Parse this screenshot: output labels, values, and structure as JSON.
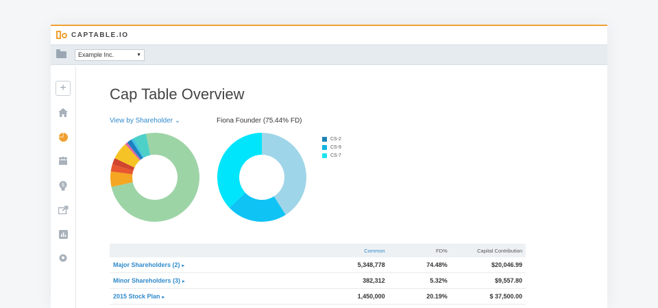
{
  "brand": {
    "name": "CAPTABLE.IO"
  },
  "toolbar": {
    "company": "Example Inc.",
    "caret": "▼"
  },
  "sidebar": {
    "items": [
      {
        "icon": "plus-icon",
        "glyph": "+"
      },
      {
        "icon": "home-icon"
      },
      {
        "icon": "pie-chart-icon"
      },
      {
        "icon": "people-icon"
      },
      {
        "icon": "lightbulb-icon"
      },
      {
        "icon": "share-icon"
      },
      {
        "icon": "bar-chart-icon"
      },
      {
        "icon": "location-icon"
      }
    ]
  },
  "main": {
    "title": "Cap Table Overview",
    "view_by": "View by Shareholder",
    "view_by_chevron": "⌄",
    "detail_title": "Fiona Founder (75.44% FD)"
  },
  "chart_data": [
    {
      "type": "pie",
      "slices": [
        {
          "value": 71.5,
          "color": "#9dd4a6"
        },
        {
          "value": 5.6,
          "color": "#f5a623"
        },
        {
          "value": 2.6,
          "color": "#e8572f"
        },
        {
          "value": 2.4,
          "color": "#d0452e"
        },
        {
          "value": 6.3,
          "color": "#f5c325"
        },
        {
          "value": 0.9,
          "color": "#d966a8"
        },
        {
          "value": 1.8,
          "color": "#1c80c0"
        },
        {
          "value": 1.0,
          "color": "#40c0e0"
        },
        {
          "value": 4.7,
          "color": "#4dd0c7"
        },
        {
          "value": 3.2,
          "color": "#9dd4a6"
        }
      ]
    },
    {
      "type": "pie",
      "title": "Fiona Founder (75.44% FD)",
      "legend": [
        "CS-2",
        "CS-9",
        "CS-7"
      ],
      "legend_colors": [
        "#1c84b5",
        "#10b4e0",
        "#1ce4ef"
      ],
      "slices": [
        {
          "name": "CS-2",
          "value": 41,
          "color": "#9fd5e8"
        },
        {
          "name": "CS-9",
          "value": 22,
          "color": "#0fc3f5"
        },
        {
          "name": "CS-7",
          "value": 37,
          "color": "#00e5fb"
        }
      ],
      "legend_placement": "right"
    }
  ],
  "table": {
    "columns": [
      "",
      "Common",
      "FD%",
      "Capital Contribution"
    ],
    "rows": [
      {
        "name": "Major Shareholders (2)",
        "arrow": "▸",
        "common": "5,348,778",
        "fd": "74.48%",
        "capital": "$20,046.99"
      },
      {
        "name": "Minor Shareholders (3)",
        "arrow": "▸",
        "common": "382,312",
        "fd": "5.32%",
        "capital": "$9,557.80"
      },
      {
        "name": "2015 Stock Plan",
        "arrow": "▸",
        "common": "1,450,000",
        "fd": "20.19%",
        "capital": "$ 37,500.00"
      }
    ]
  },
  "colors": {
    "accent": "#f0a030",
    "link": "#2f8acb"
  }
}
